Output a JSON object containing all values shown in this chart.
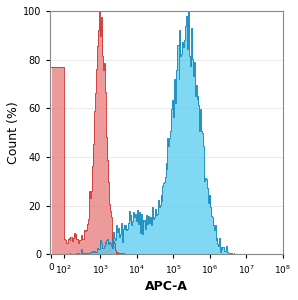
{
  "xlabel": "APC-A",
  "ylabel": "Count (%)",
  "ylim": [
    0,
    100
  ],
  "yticks": [
    0,
    20,
    40,
    60,
    80,
    100
  ],
  "background_color": "#ffffff",
  "red_fill_color": "#e87878",
  "red_edge_color": "#cc3333",
  "blue_fill_color": "#55ccee",
  "blue_edge_color": "#1188bb",
  "red_alpha": 0.75,
  "blue_alpha": 0.75,
  "red_peak": 3.0,
  "blue_peak": 5.35,
  "linthresh": 100,
  "xlim": [
    -10,
    100000000
  ],
  "n_bins": 256,
  "seed": 99
}
